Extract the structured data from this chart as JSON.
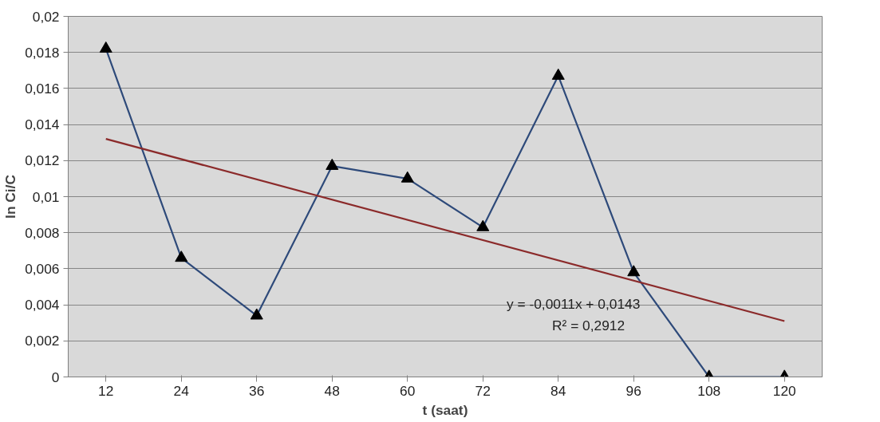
{
  "chart_data": {
    "type": "line",
    "xlabel": "t (saat)",
    "ylabel": "ln Ci/C",
    "categories": [
      "12",
      "24",
      "36",
      "48",
      "60",
      "72",
      "84",
      "96",
      "108",
      "120"
    ],
    "series": [
      {
        "color": "#2e4a7a",
        "marker": "triangle",
        "values": [
          0.0182,
          0.0066,
          0.0034,
          0.0117,
          0.011,
          0.0083,
          0.0167,
          0.0058,
          0,
          0
        ]
      },
      {
        "color": "#8b2a2a",
        "marker": "none",
        "x": [
          "12",
          "120"
        ],
        "values": [
          0.0132,
          0.0031
        ]
      }
    ],
    "ylim": [
      0,
      0.02
    ],
    "yticks": [
      0,
      {
        "value": 0.002,
        "label": "0,002"
      },
      {
        "value": 0.004,
        "label": "0,004"
      },
      {
        "value": 0.006,
        "label": "0,006"
      },
      {
        "value": 0.008,
        "label": "0,008"
      },
      {
        "value": 0.01,
        "label": "0,01"
      },
      {
        "value": 0.012,
        "label": "0,012"
      },
      {
        "value": 0.014,
        "label": "0,014"
      },
      {
        "value": 0.016,
        "label": "0,016"
      },
      {
        "value": 0.018,
        "label": "0,018"
      },
      {
        "value": 0.02,
        "label": "0,02"
      }
    ],
    "grid": "y",
    "annotations": [
      "y = -0,0011x + 0,0143",
      "R² = 0,2912"
    ]
  }
}
